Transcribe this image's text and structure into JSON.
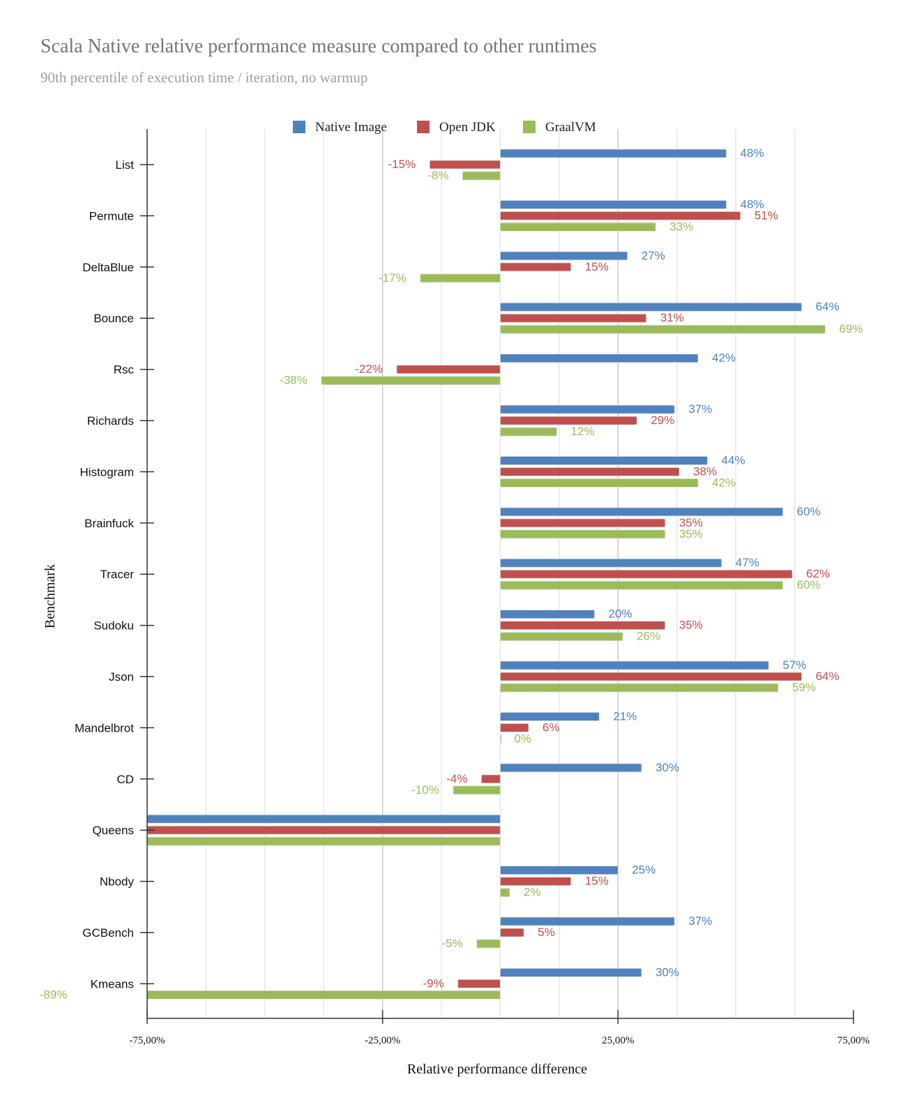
{
  "chart_data": {
    "type": "bar",
    "orientation": "horizontal",
    "title": "Scala Native relative performance measure compared to other runtimes",
    "subtitle": "90th percentile of execution time / iteration, no warmup",
    "xlabel": "Relative performance difference",
    "ylabel": "Benchmark",
    "xlim": [
      -75,
      75
    ],
    "xticks": [
      -75,
      -25,
      25,
      75
    ],
    "xtick_labels": [
      "-75,00%",
      "-25,00%",
      "25,00%",
      "75,00%"
    ],
    "grid": true,
    "legend_position": "top",
    "categories": [
      "List",
      "Permute",
      "DeltaBlue",
      "Bounce",
      "Rsc",
      "Richards",
      "Histogram",
      "Brainfuck",
      "Tracer",
      "Sudoku",
      "Json",
      "Mandelbrot",
      "CD",
      "Queens",
      "Nbody",
      "GCBench",
      "Kmeans"
    ],
    "series": [
      {
        "name": "Native Image",
        "color": "#4f81bd",
        "values": [
          48,
          48,
          27,
          64,
          42,
          37,
          44,
          60,
          47,
          20,
          57,
          21,
          30,
          -75,
          25,
          37,
          30
        ],
        "labels": [
          "48%",
          "48%",
          "27%",
          "64%",
          "42%",
          "37%",
          "44%",
          "60%",
          "47%",
          "20%",
          "57%",
          "21%",
          "30%",
          "",
          "25%",
          "37%",
          "30%"
        ]
      },
      {
        "name": "Open JDK",
        "color": "#c0504d",
        "values": [
          -15,
          51,
          15,
          31,
          -22,
          29,
          38,
          35,
          62,
          35,
          64,
          6,
          -4,
          -75,
          15,
          5,
          -9
        ],
        "labels": [
          "-15%",
          "51%",
          "15%",
          "31%",
          "-22%",
          "29%",
          "38%",
          "35%",
          "62%",
          "35%",
          "64%",
          "6%",
          "-4%",
          "",
          "15%",
          "5%",
          "-9%"
        ]
      },
      {
        "name": "GraalVM",
        "color": "#9bbb59",
        "values": [
          -8,
          33,
          -17,
          69,
          -38,
          12,
          42,
          35,
          60,
          26,
          59,
          0,
          -10,
          -75,
          2,
          -5,
          -89
        ],
        "labels": [
          "-8%",
          "33%",
          "-17%",
          "69%",
          "-38%",
          "12%",
          "42%",
          "35%",
          "60%",
          "26%",
          "59%",
          "0%",
          "-10%",
          "",
          "2%",
          "-5%",
          "-89%"
        ]
      }
    ]
  }
}
